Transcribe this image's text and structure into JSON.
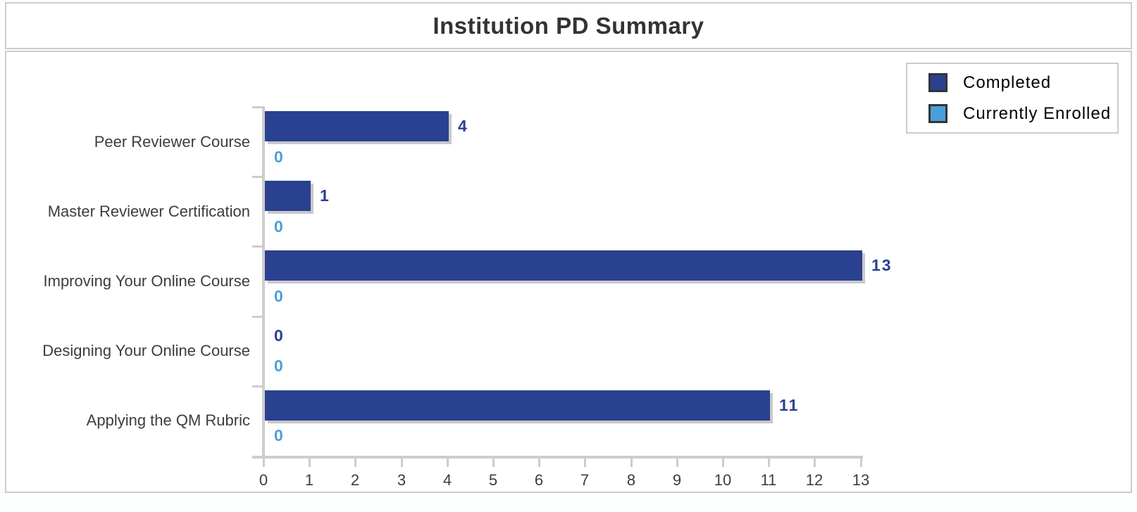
{
  "page": {
    "title": "Institution PD Summary"
  },
  "colors": {
    "completed": "#2a4191",
    "currently_enrolled": "#4a9fdb",
    "axis": "#cdcdcd",
    "bar_shadow": "#c9c9c9",
    "panel_border": "#cccccc",
    "text": "#3d3d3d",
    "title_text": "#333333",
    "legend_swatch_border": "#333333"
  },
  "chart_data": {
    "type": "bar",
    "orientation": "horizontal",
    "title": "Institution PD Summary",
    "categories": [
      "Peer Reviewer Course",
      "Master Reviewer Certification",
      "Improving Your Online Course",
      "Designing Your Online Course",
      "Applying the QM Rubric"
    ],
    "series": [
      {
        "name": "Completed",
        "color": "#2a4191",
        "values": [
          4,
          1,
          13,
          0,
          11
        ]
      },
      {
        "name": "Currently Enrolled",
        "color": "#4a9fdb",
        "values": [
          0,
          0,
          0,
          0,
          0
        ]
      }
    ],
    "xlabel": "",
    "ylabel": "",
    "xlim": [
      0,
      13
    ],
    "x_ticks": [
      0,
      1,
      2,
      3,
      4,
      5,
      6,
      7,
      8,
      9,
      10,
      11,
      12,
      13
    ],
    "grid": false,
    "legend_position": "top-right",
    "value_labels": true
  }
}
